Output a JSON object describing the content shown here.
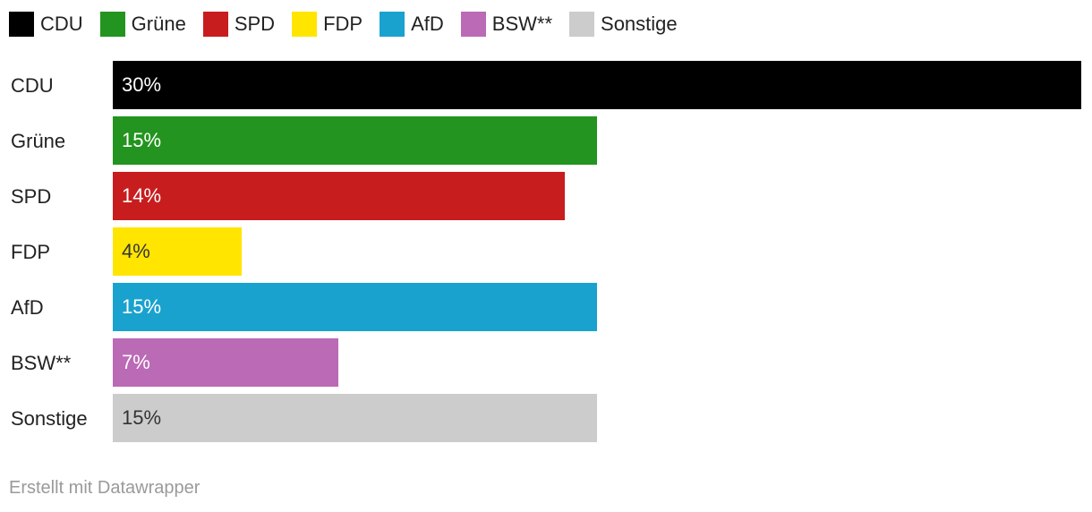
{
  "chart_data": {
    "type": "bar",
    "orientation": "horizontal",
    "categories": [
      "CDU",
      "Grüne",
      "SPD",
      "FDP",
      "AfD",
      "BSW**",
      "Sonstige"
    ],
    "values": [
      30,
      15,
      14,
      4,
      15,
      7,
      15
    ],
    "value_labels": [
      "30%",
      "15%",
      "14%",
      "4%",
      "15%",
      "7%",
      "15%"
    ],
    "unit": "%",
    "colors": [
      "#000000",
      "#23941f",
      "#c81d1e",
      "#ffe500",
      "#1aa2cf",
      "#bb6ab5",
      "#cccccc"
    ],
    "label_text_colors": [
      "#ffffff",
      "#ffffff",
      "#ffffff",
      "#333333",
      "#ffffff",
      "#ffffff",
      "#333333"
    ],
    "xlim": [
      0,
      30
    ],
    "grid": false,
    "legend": {
      "position": "top-left",
      "entries": [
        "CDU",
        "Grüne",
        "SPD",
        "FDP",
        "AfD",
        "BSW**",
        "Sonstige"
      ]
    }
  },
  "footer": {
    "credit": "Erstellt mit Datawrapper"
  }
}
